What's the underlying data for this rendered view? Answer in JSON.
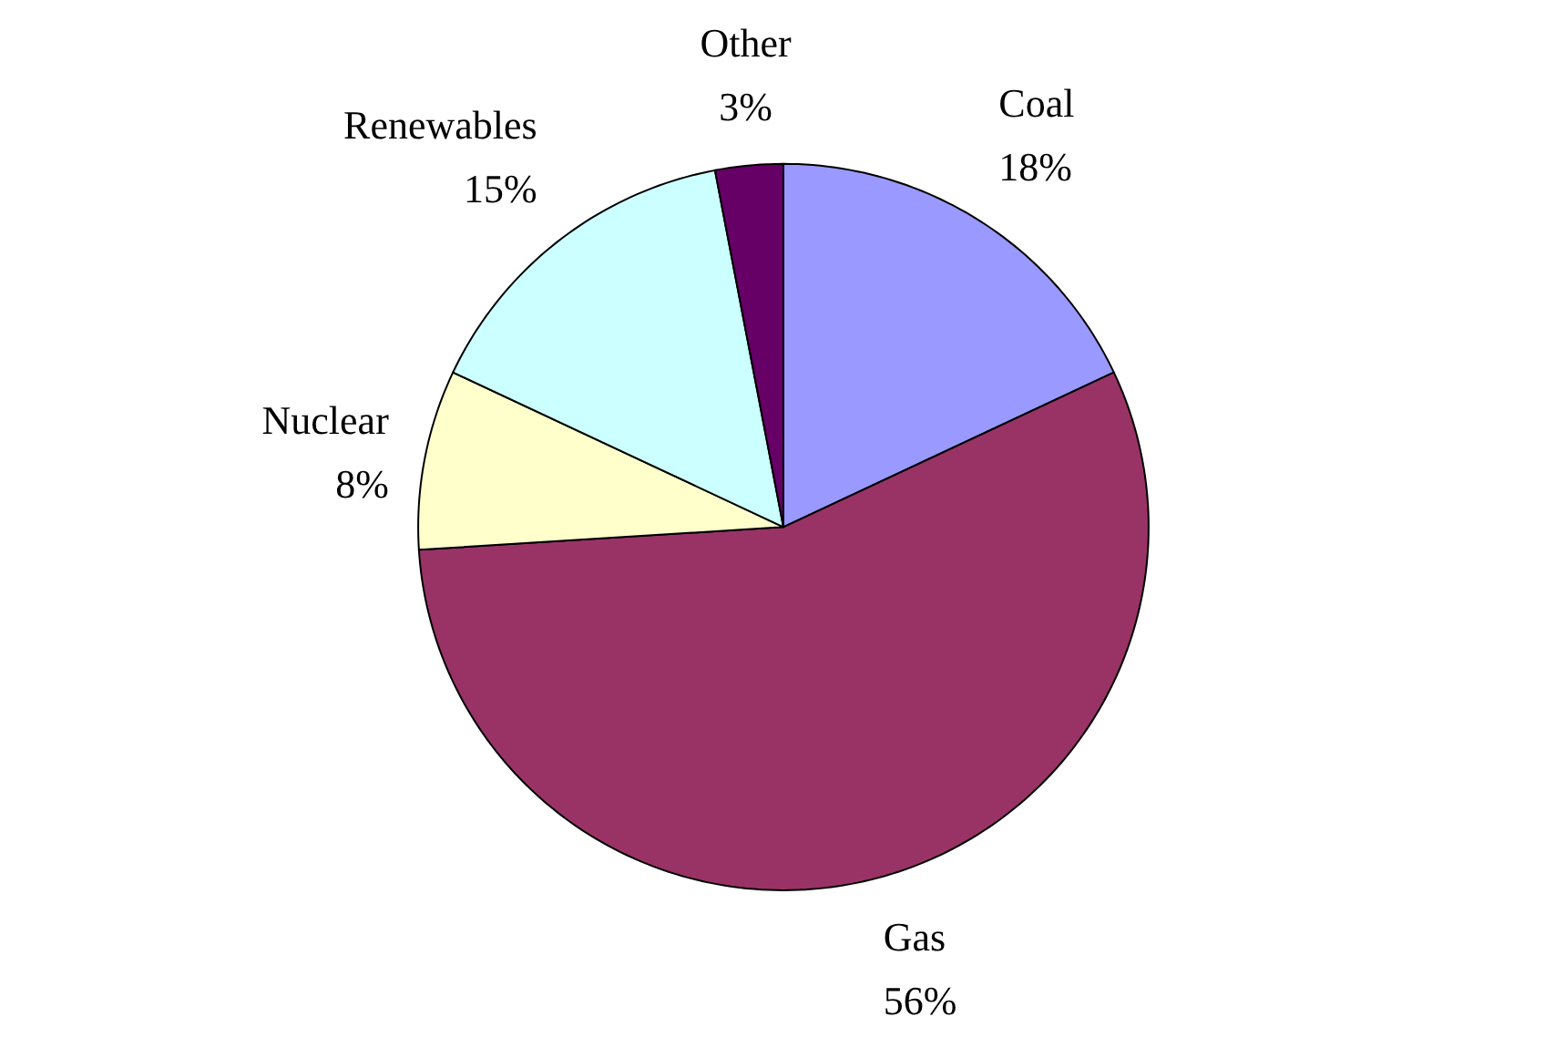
{
  "chart_data": {
    "type": "pie",
    "categories": [
      "Coal",
      "Gas",
      "Nuclear",
      "Renewables",
      "Other"
    ],
    "values": [
      18,
      56,
      8,
      15,
      3
    ],
    "value_labels": [
      "18%",
      "56%",
      "8%",
      "15%",
      "3%"
    ],
    "colors": [
      "#9999ff",
      "#993366",
      "#ffffcc",
      "#ccffff",
      "#660066"
    ]
  }
}
